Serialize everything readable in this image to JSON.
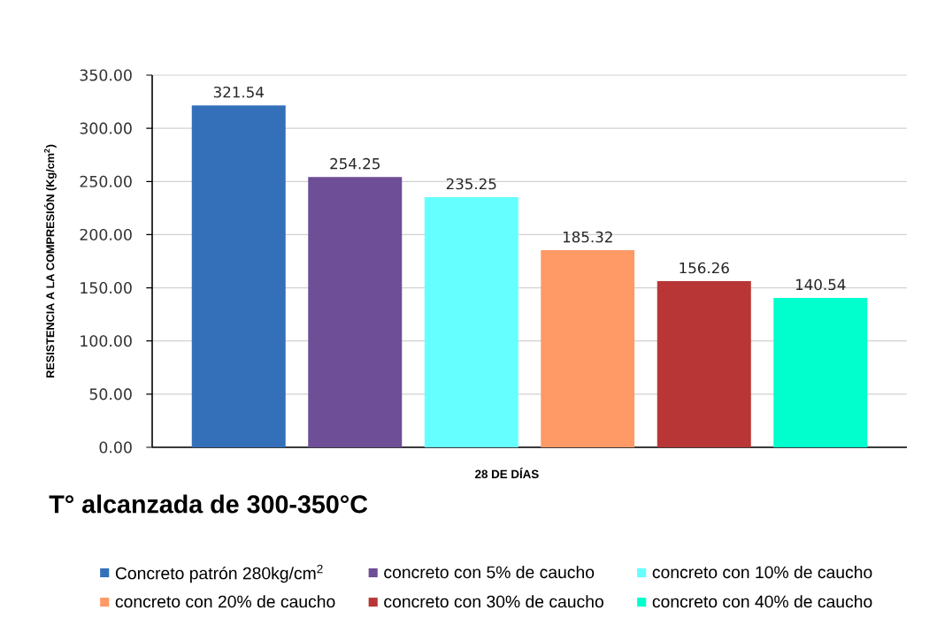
{
  "chart_data": {
    "type": "bar",
    "title": "T° alcanzada de 300-350°C",
    "xlabel": "28 DE DÍAS",
    "ylabel": "RESISTENCIA A LA COMPRESIÓN (Kg/cm$^{2}$)",
    "categories": [
      null
    ],
    "series": [
      {
        "name": "Concreto patrón 280kg/cm$^{2}$",
        "color": "#3470ba",
        "values": [
          321.54
        ]
      },
      {
        "name": "concreto con 5% de caucho",
        "color": "#6e4e96",
        "values": [
          254.25
        ]
      },
      {
        "name": "concreto con 10% de caucho",
        "color": "#66ffff",
        "values": [
          235.25
        ]
      },
      {
        "name": "concreto con 20% de caucho",
        "color": "#ff9966",
        "values": [
          185.32
        ]
      },
      {
        "name": "concreto con 30% de caucho",
        "color": "#b83636",
        "values": [
          156.26
        ]
      },
      {
        "name": "concreto con 40% de caucho",
        "color": "#00ffcc",
        "values": [
          140.54
        ]
      }
    ],
    "ylim": [
      0,
      350
    ],
    "yticks": [
      {
        "value": 0,
        "label": "0.00"
      },
      {
        "value": 50,
        "label": "50.00"
      },
      {
        "value": 100,
        "label": "100.00"
      },
      {
        "value": 150,
        "label": "150.00"
      },
      {
        "value": 200,
        "label": "200.00"
      },
      {
        "value": 250,
        "label": "250.00"
      },
      {
        "value": 300,
        "label": "300.00"
      },
      {
        "value": 350,
        "label": "350.00"
      }
    ],
    "grid": "y",
    "legend": "bottom",
    "data_labels": true
  }
}
